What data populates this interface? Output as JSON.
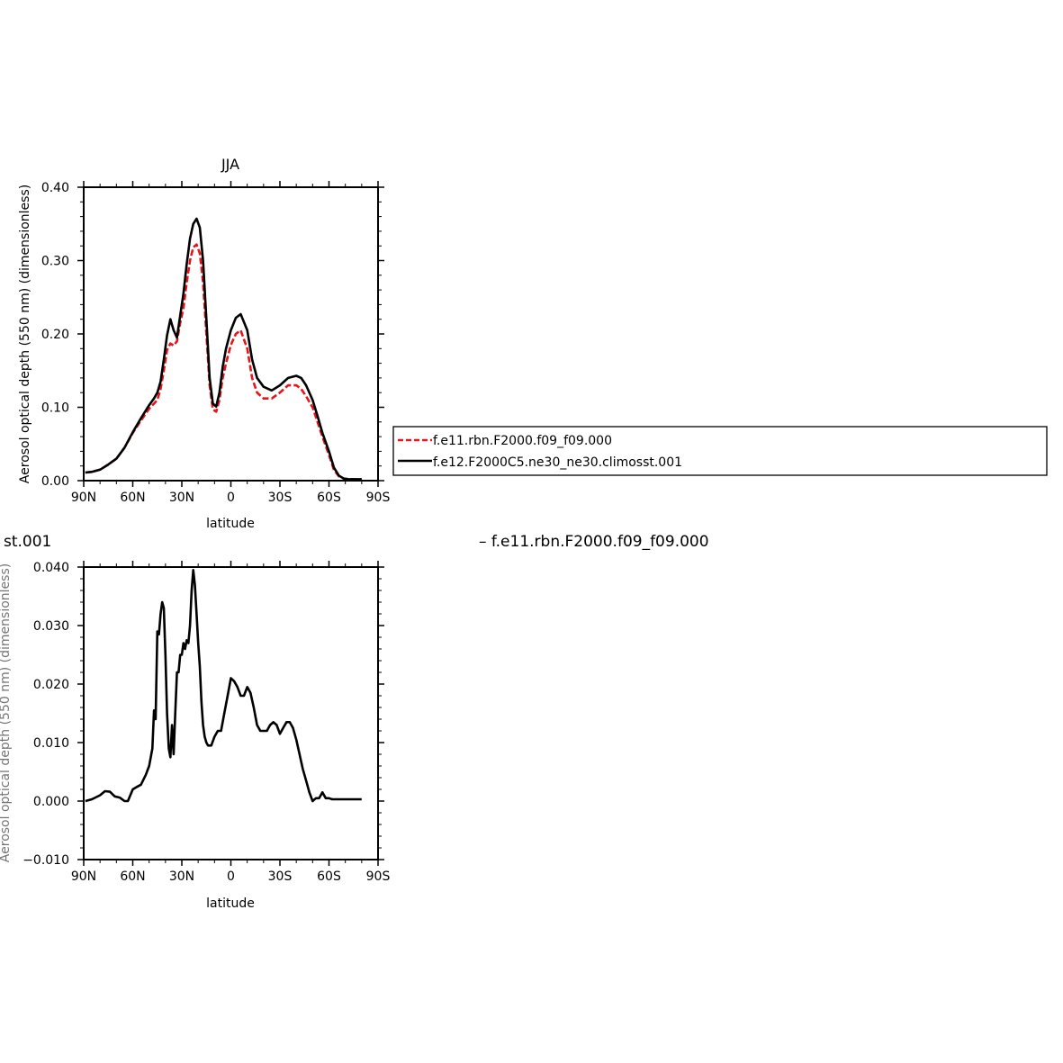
{
  "chart_data": [
    {
      "type": "line",
      "title": "JJA",
      "xlabel": "latitude",
      "ylabel": "Aerosol optical depth (550 nm) (dimensionless)",
      "xlim": [
        90,
        -90
      ],
      "ylim": [
        0.0,
        0.4
      ],
      "x_ticks": [
        {
          "value": 90,
          "label": "90N"
        },
        {
          "value": 60,
          "label": "60N"
        },
        {
          "value": 30,
          "label": "30N"
        },
        {
          "value": 0,
          "label": "0"
        },
        {
          "value": -30,
          "label": "30S"
        },
        {
          "value": -60,
          "label": "60S"
        },
        {
          "value": -90,
          "label": "90S"
        }
      ],
      "y_ticks": [
        {
          "value": 0.0,
          "label": "0.00"
        },
        {
          "value": 0.1,
          "label": "0.10"
        },
        {
          "value": 0.2,
          "label": "0.20"
        },
        {
          "value": 0.3,
          "label": "0.30"
        },
        {
          "value": 0.4,
          "label": "0.40"
        }
      ],
      "grid": false,
      "legend_position": "right, outside plot",
      "series": [
        {
          "name": "f.e11.rbn.F2000.f09_f09.000",
          "color": "#e8141a",
          "dash": "dashed",
          "x": [
            89,
            85,
            80,
            75,
            70,
            65,
            60,
            55,
            50,
            47,
            45,
            43,
            41,
            39,
            37,
            35,
            33,
            31,
            29,
            27,
            25,
            23,
            21,
            19,
            17,
            15,
            13,
            11,
            9,
            7,
            5,
            3,
            0,
            -3,
            -6,
            -10,
            -13,
            -16,
            -20,
            -25,
            -30,
            -35,
            -40,
            -43,
            -46,
            -50,
            -53,
            -56,
            -60,
            -63,
            -66,
            -69,
            -72,
            -75,
            -80
          ],
          "y": [
            0.011,
            0.012,
            0.015,
            0.022,
            0.03,
            0.045,
            0.065,
            0.082,
            0.098,
            0.105,
            0.11,
            0.125,
            0.15,
            0.178,
            0.187,
            0.184,
            0.19,
            0.215,
            0.235,
            0.27,
            0.3,
            0.318,
            0.322,
            0.31,
            0.27,
            0.2,
            0.13,
            0.097,
            0.094,
            0.11,
            0.14,
            0.16,
            0.185,
            0.2,
            0.205,
            0.18,
            0.14,
            0.12,
            0.112,
            0.112,
            0.12,
            0.13,
            0.13,
            0.125,
            0.115,
            0.1,
            0.08,
            0.06,
            0.035,
            0.015,
            0.006,
            0.003,
            0.002,
            0.002,
            0.002
          ]
        },
        {
          "name": "f.e12.F2000C5.ne30_ne30.climosst.001",
          "color": "#000000",
          "dash": "solid",
          "x": [
            89,
            85,
            80,
            75,
            70,
            65,
            60,
            55,
            50,
            47,
            45,
            43,
            41,
            39,
            37,
            35,
            33,
            31,
            29,
            27,
            25,
            23,
            21,
            19,
            17,
            15,
            13,
            11,
            9,
            7,
            5,
            3,
            0,
            -3,
            -6,
            -10,
            -13,
            -16,
            -20,
            -25,
            -30,
            -35,
            -40,
            -43,
            -46,
            -50,
            -53,
            -56,
            -60,
            -63,
            -66,
            -69,
            -72,
            -75,
            -80
          ],
          "y": [
            0.011,
            0.012,
            0.015,
            0.022,
            0.03,
            0.045,
            0.066,
            0.085,
            0.103,
            0.112,
            0.12,
            0.135,
            0.165,
            0.198,
            0.22,
            0.205,
            0.195,
            0.225,
            0.255,
            0.295,
            0.33,
            0.35,
            0.357,
            0.345,
            0.3,
            0.22,
            0.14,
            0.105,
            0.101,
            0.12,
            0.155,
            0.18,
            0.205,
            0.222,
            0.227,
            0.205,
            0.165,
            0.14,
            0.128,
            0.123,
            0.13,
            0.14,
            0.143,
            0.14,
            0.13,
            0.11,
            0.088,
            0.065,
            0.04,
            0.018,
            0.007,
            0.003,
            0.002,
            0.002,
            0.002
          ]
        }
      ]
    },
    {
      "type": "line",
      "title_fragment": "st.001",
      "title_right": "– f.e11.rbn.F2000.f09_f09.000",
      "xlabel": "latitude",
      "ylabel": "Aerosol optical depth (550 nm) (dimensionless)",
      "xlim": [
        90,
        -90
      ],
      "ylim": [
        -0.01,
        0.04
      ],
      "x_ticks": [
        {
          "value": 90,
          "label": "90N"
        },
        {
          "value": 60,
          "label": "60N"
        },
        {
          "value": 30,
          "label": "30N"
        },
        {
          "value": 0,
          "label": "0"
        },
        {
          "value": -30,
          "label": "30S"
        },
        {
          "value": -60,
          "label": "60S"
        },
        {
          "value": -90,
          "label": "90S"
        }
      ],
      "y_ticks": [
        {
          "value": -0.01,
          "label": "−0.010"
        },
        {
          "value": 0.0,
          "label": "0.000"
        },
        {
          "value": 0.01,
          "label": "0.010"
        },
        {
          "value": 0.02,
          "label": "0.020"
        },
        {
          "value": 0.03,
          "label": "0.030"
        },
        {
          "value": 0.04,
          "label": "0.040"
        }
      ],
      "grid": false,
      "series": [
        {
          "color": "#000000",
          "dash": "solid",
          "x": [
            89,
            85,
            80,
            77,
            74,
            71,
            68,
            65,
            63,
            60,
            57,
            55,
            52,
            50,
            48,
            47,
            46,
            45,
            44,
            43,
            42,
            41,
            40,
            39,
            38,
            37,
            36,
            35,
            34,
            33,
            32,
            31,
            30,
            29,
            28,
            27,
            26,
            25,
            24,
            23,
            22,
            21,
            20,
            19,
            18,
            17,
            16,
            15,
            14,
            12,
            10,
            8,
            6,
            4,
            2,
            0,
            -2,
            -4,
            -6,
            -8,
            -10,
            -12,
            -14,
            -16,
            -18,
            -20,
            -22,
            -24,
            -26,
            -28,
            -30,
            -32,
            -34,
            -36,
            -38,
            -40,
            -42,
            -44,
            -46,
            -48,
            -50,
            -52,
            -54,
            -56,
            -58,
            -60,
            -62,
            -64,
            -66,
            -67,
            -68,
            -69,
            -70,
            -72,
            -75,
            -80
          ],
          "y": [
            0.0,
            0.0003,
            0.001,
            0.0017,
            0.0016,
            0.0008,
            0.0006,
            0.0,
            0.0,
            0.002,
            0.0025,
            0.0028,
            0.0045,
            0.006,
            0.009,
            0.0155,
            0.014,
            0.029,
            0.0285,
            0.032,
            0.034,
            0.033,
            0.025,
            0.015,
            0.009,
            0.0075,
            0.013,
            0.008,
            0.015,
            0.022,
            0.022,
            0.025,
            0.025,
            0.027,
            0.026,
            0.0275,
            0.027,
            0.03,
            0.036,
            0.0395,
            0.037,
            0.032,
            0.027,
            0.023,
            0.017,
            0.013,
            0.011,
            0.01,
            0.0095,
            0.0095,
            0.011,
            0.012,
            0.012,
            0.015,
            0.018,
            0.021,
            0.0205,
            0.0195,
            0.018,
            0.018,
            0.0195,
            0.0185,
            0.016,
            0.013,
            0.012,
            0.012,
            0.012,
            0.013,
            0.0135,
            0.013,
            0.0115,
            0.0125,
            0.0135,
            0.0135,
            0.0125,
            0.0105,
            0.008,
            0.0055,
            0.0035,
            0.0015,
            0.0,
            0.0005,
            0.0005,
            0.0015,
            0.0005,
            0.0005,
            0.0003,
            0.0003,
            0.0003,
            0.0003,
            0.0003,
            0.0003,
            0.0003,
            0.0003,
            0.0003,
            0.0003
          ]
        }
      ]
    }
  ]
}
